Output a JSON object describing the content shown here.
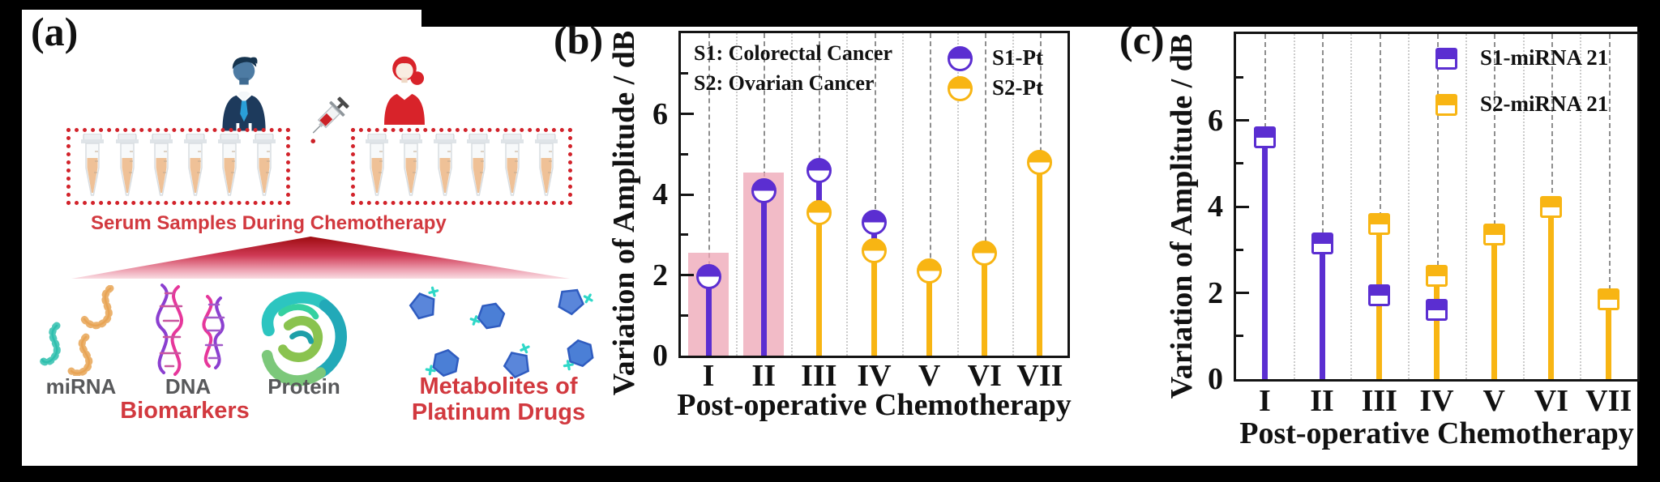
{
  "panel_a": {
    "label": "(a)",
    "serum_caption": "Serum Samples During Chemotherapy",
    "sample_tubes_per_box": 6,
    "labels": {
      "mirna": "miRNA",
      "dna": "DNA",
      "protein": "Protein",
      "biomarkers": "Biomarkers",
      "metabolites_line1": "Metabolites of",
      "metabolites_line2": "Platinum Drugs"
    },
    "colors": {
      "accent_red": "#D2232B",
      "text_red": "#D2393F",
      "gray_label": "#58595B",
      "tube_liquid": "#EFC197",
      "man_suit": "#1D3A5C",
      "man_face": "#4D7BA3",
      "man_tie": "#2A9FD8",
      "woman_red": "#D8232A"
    }
  },
  "chart_data": [
    {
      "panel": "(b)",
      "type": "lollipop",
      "categories": [
        "I",
        "II",
        "III",
        "IV",
        "V",
        "VI",
        "VII"
      ],
      "series": [
        {
          "name": "S1-Pt",
          "marker": "half-filled-circle",
          "color": "#5B2ED1",
          "values": [
            1.95,
            4.1,
            4.6,
            3.3,
            null,
            null,
            null
          ]
        },
        {
          "name": "S2-Pt",
          "marker": "half-filled-circle",
          "color": "#F8B513",
          "values": [
            null,
            null,
            3.55,
            2.6,
            2.1,
            2.55,
            4.8
          ]
        }
      ],
      "highlight_bars": {
        "color": "rgba(238,164,180,0.75)",
        "values": [
          2.55,
          4.55,
          null,
          null,
          null,
          null,
          null
        ]
      },
      "annotations": [
        "S1: Colorectal Cancer",
        "S2: Ovarian Cancer"
      ],
      "xlabel": "Post-operative Chemotherapy",
      "ylabel": "Variation of Amplitude / dB",
      "ylim": [
        0,
        8
      ],
      "yticks": [
        0,
        2,
        4,
        6
      ],
      "grid": "dashed-vertical-major-dotted-minor",
      "legend_position": "top-right"
    },
    {
      "panel": "(c)",
      "type": "lollipop",
      "categories": [
        "I",
        "II",
        "III",
        "IV",
        "V",
        "VI",
        "VII"
      ],
      "series": [
        {
          "name": "S1-miRNA 21",
          "marker": "half-filled-square",
          "color": "#5B2ED1",
          "values": [
            5.6,
            3.15,
            1.95,
            1.6,
            null,
            null,
            null
          ]
        },
        {
          "name": "S2-miRNA 21",
          "marker": "half-filled-square",
          "color": "#F8B513",
          "values": [
            null,
            null,
            3.6,
            2.4,
            3.35,
            4.0,
            1.85
          ]
        }
      ],
      "xlabel": "Post-operative Chemotherapy",
      "ylabel": "Variation of Amplitude / dB",
      "ylim": [
        0,
        8
      ],
      "yticks": [
        0,
        2,
        4,
        6
      ],
      "grid": "dashed-vertical-major-dotted-minor",
      "legend_position": "top-right"
    }
  ]
}
